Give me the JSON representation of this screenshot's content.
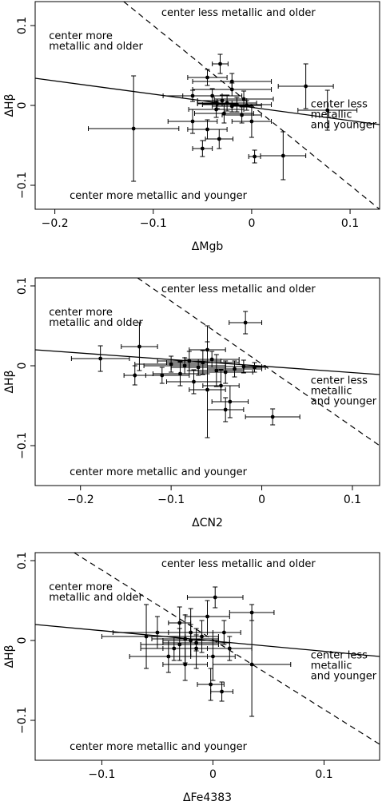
{
  "chart_data": [
    {
      "type": "scatter",
      "xlabel": "ΔMgb",
      "ylabel": "ΔHβ",
      "xlim": [
        -0.22,
        0.13
      ],
      "ylim": [
        -0.13,
        0.13
      ],
      "xticks": [
        -0.2,
        -0.1,
        0,
        0.1
      ],
      "xtick_labels": [
        "−0.2",
        "−0.1",
        "0",
        "0.1"
      ],
      "yticks": [
        -0.1,
        0,
        0.1
      ],
      "ytick_labels": [
        "−0.1",
        "0",
        "0.1"
      ],
      "annotations": {
        "top": "center less metallic and older",
        "left_line1": "center more",
        "left_line2": "metallic and older",
        "right_line1": "center less",
        "right_line2": "metallic",
        "right_line3": "and younger",
        "bottom": "center more metallic and younger"
      },
      "solid_line": [
        [
          -0.22,
          0.034
        ],
        [
          0.13,
          -0.024
        ]
      ],
      "dashed_line": [
        [
          -0.13,
          0.13
        ],
        [
          0.13,
          -0.13
        ]
      ],
      "points": [
        {
          "x": -0.12,
          "y": -0.029,
          "xerr": 0.046,
          "yerr": 0.066
        },
        {
          "x": -0.032,
          "y": 0.052,
          "xerr": 0.008,
          "yerr": 0.012
        },
        {
          "x": 0.055,
          "y": 0.024,
          "xerr": 0.028,
          "yerr": 0.028
        },
        {
          "x": 0.077,
          "y": -0.006,
          "xerr": 0.03,
          "yerr": 0.025
        },
        {
          "x": 0.032,
          "y": -0.063,
          "xerr": 0.023,
          "yerr": 0.03
        },
        {
          "x": 0.003,
          "y": -0.064,
          "xerr": 0.006,
          "yerr": 0.008
        },
        {
          "x": -0.05,
          "y": -0.054,
          "xerr": 0.01,
          "yerr": 0.01
        },
        {
          "x": -0.033,
          "y": -0.042,
          "xerr": 0.014,
          "yerr": 0.012
        },
        {
          "x": -0.045,
          "y": 0.035,
          "xerr": 0.02,
          "yerr": 0.01
        },
        {
          "x": -0.02,
          "y": 0.02,
          "xerr": 0.04,
          "yerr": 0.008
        },
        {
          "x": -0.04,
          "y": 0.012,
          "xerr": 0.03,
          "yerr": 0.009
        },
        {
          "x": -0.03,
          "y": 0.006,
          "xerr": 0.025,
          "yerr": 0.007
        },
        {
          "x": -0.025,
          "y": 0.003,
          "xerr": 0.03,
          "yerr": 0.01
        },
        {
          "x": -0.02,
          "y": -0.001,
          "xerr": 0.02,
          "yerr": 0.007
        },
        {
          "x": -0.015,
          "y": 0.001,
          "xerr": 0.035,
          "yerr": 0.009
        },
        {
          "x": -0.036,
          "y": -0.005,
          "xerr": 0.028,
          "yerr": 0.01
        },
        {
          "x": -0.028,
          "y": -0.01,
          "xerr": 0.03,
          "yerr": 0.012
        },
        {
          "x": -0.01,
          "y": -0.012,
          "xerr": 0.02,
          "yerr": 0.01
        },
        {
          "x": -0.06,
          "y": 0.012,
          "xerr": 0.03,
          "yerr": 0.007
        },
        {
          "x": -0.06,
          "y": -0.02,
          "xerr": 0.025,
          "yerr": 0.015
        },
        {
          "x": -0.008,
          "y": 0.008,
          "xerr": 0.03,
          "yerr": 0.01
        },
        {
          "x": 0.0,
          "y": -0.02,
          "xerr": 0.02,
          "yerr": 0.02
        },
        {
          "x": -0.045,
          "y": -0.03,
          "xerr": 0.02,
          "yerr": 0.012
        },
        {
          "x": -0.02,
          "y": 0.03,
          "xerr": 0.04,
          "yerr": 0.01
        },
        {
          "x": -0.005,
          "y": 0.0,
          "xerr": 0.015,
          "yerr": 0.006
        },
        {
          "x": -0.035,
          "y": 0.002,
          "xerr": 0.02,
          "yerr": 0.006
        }
      ]
    },
    {
      "type": "scatter",
      "xlabel": "ΔCN2",
      "ylabel": "ΔHβ",
      "xlim": [
        -0.25,
        0.13
      ],
      "ylim": [
        -0.15,
        0.11
      ],
      "xticks": [
        -0.2,
        -0.1,
        0,
        0.1
      ],
      "xtick_labels": [
        "−0.2",
        "−0.1",
        "0",
        "0.1"
      ],
      "yticks": [
        -0.1,
        0,
        0.1
      ],
      "ytick_labels": [
        "−0.1",
        "0",
        "0.1"
      ],
      "annotations": {
        "top": "center less metallic and older",
        "left_line1": "center more",
        "left_line2": "metallic and older",
        "right_line1": "center less",
        "right_line2": "metallic",
        "right_line3": "and younger",
        "bottom": "center more metallic and younger"
      },
      "solid_line": [
        [
          -0.25,
          0.02
        ],
        [
          0.13,
          -0.011
        ]
      ],
      "dashed_line": [
        [
          -0.137,
          0.11
        ],
        [
          0.13,
          -0.1
        ]
      ],
      "points": [
        {
          "x": -0.018,
          "y": 0.054,
          "xerr": 0.018,
          "yerr": 0.014
        },
        {
          "x": -0.178,
          "y": 0.009,
          "xerr": 0.032,
          "yerr": 0.016
        },
        {
          "x": -0.135,
          "y": 0.024,
          "xerr": 0.02,
          "yerr": 0.03
        },
        {
          "x": -0.14,
          "y": -0.012,
          "xerr": 0.012,
          "yerr": 0.012
        },
        {
          "x": -0.11,
          "y": -0.012,
          "xerr": 0.03,
          "yerr": 0.01
        },
        {
          "x": 0.012,
          "y": -0.064,
          "xerr": 0.03,
          "yerr": 0.01
        },
        {
          "x": -0.04,
          "y": -0.055,
          "xerr": 0.02,
          "yerr": 0.015
        },
        {
          "x": -0.06,
          "y": -0.03,
          "xerr": 0.02,
          "yerr": 0.06
        },
        {
          "x": -0.035,
          "y": -0.045,
          "xerr": 0.02,
          "yerr": 0.02
        },
        {
          "x": -0.06,
          "y": 0.02,
          "xerr": 0.02,
          "yerr": 0.03
        },
        {
          "x": -0.1,
          "y": 0.002,
          "xerr": 0.04,
          "yerr": 0.01
        },
        {
          "x": -0.08,
          "y": 0.006,
          "xerr": 0.035,
          "yerr": 0.012
        },
        {
          "x": -0.07,
          "y": -0.002,
          "xerr": 0.03,
          "yerr": 0.01
        },
        {
          "x": -0.065,
          "y": 0.004,
          "xerr": 0.04,
          "yerr": 0.015
        },
        {
          "x": -0.05,
          "y": -0.006,
          "xerr": 0.03,
          "yerr": 0.02
        },
        {
          "x": -0.04,
          "y": -0.008,
          "xerr": 0.03,
          "yerr": 0.014
        },
        {
          "x": -0.09,
          "y": -0.01,
          "xerr": 0.03,
          "yerr": 0.015
        },
        {
          "x": -0.03,
          "y": -0.004,
          "xerr": 0.03,
          "yerr": 0.01
        },
        {
          "x": -0.02,
          "y": -0.001,
          "xerr": 0.02,
          "yerr": 0.008
        },
        {
          "x": -0.055,
          "y": 0.008,
          "xerr": 0.03,
          "yerr": 0.01
        },
        {
          "x": -0.075,
          "y": -0.02,
          "xerr": 0.03,
          "yerr": 0.015
        },
        {
          "x": -0.045,
          "y": -0.025,
          "xerr": 0.02,
          "yerr": 0.02
        },
        {
          "x": -0.008,
          "y": -0.002,
          "xerr": 0.012,
          "yerr": 0.006
        },
        {
          "x": -0.085,
          "y": 0.0,
          "xerr": 0.045,
          "yerr": 0.01
        }
      ]
    },
    {
      "type": "scatter",
      "xlabel": "ΔFe4383",
      "ylabel": "ΔHβ",
      "xlim": [
        -0.16,
        0.15
      ],
      "ylim": [
        -0.15,
        0.11
      ],
      "xticks": [
        -0.1,
        0,
        0.1
      ],
      "xtick_labels": [
        "−0.1",
        "0",
        "0.1"
      ],
      "yticks": [
        -0.1,
        0,
        0.1
      ],
      "ytick_labels": [
        "−0.1",
        "0",
        "0.1"
      ],
      "annotations": {
        "top": "center less metallic and older",
        "left_line1": "center more",
        "left_line2": "metallic and older",
        "right_line1": "center less",
        "right_line2": "metallic",
        "right_line3": "and younger",
        "bottom": "center more metallic and younger"
      },
      "solid_line": [
        [
          -0.16,
          0.02
        ],
        [
          0.15,
          -0.02
        ]
      ],
      "dashed_line": [
        [
          -0.125,
          0.11
        ],
        [
          0.15,
          -0.13
        ]
      ],
      "points": [
        {
          "x": 0.035,
          "y": -0.03,
          "xerr": 0.035,
          "yerr": 0.065
        },
        {
          "x": 0.035,
          "y": 0.035,
          "xerr": 0.02,
          "yerr": 0.01
        },
        {
          "x": 0.002,
          "y": 0.054,
          "xerr": 0.025,
          "yerr": 0.013
        },
        {
          "x": -0.002,
          "y": -0.055,
          "xerr": 0.012,
          "yerr": 0.02
        },
        {
          "x": 0.008,
          "y": -0.064,
          "xerr": 0.01,
          "yerr": 0.012
        },
        {
          "x": -0.03,
          "y": 0.022,
          "xerr": 0.01,
          "yerr": 0.02
        },
        {
          "x": -0.06,
          "y": 0.005,
          "xerr": 0.04,
          "yerr": 0.04
        },
        {
          "x": -0.025,
          "y": 0.002,
          "xerr": 0.03,
          "yerr": 0.03
        },
        {
          "x": -0.02,
          "y": 0.0,
          "xerr": 0.025,
          "yerr": 0.02
        },
        {
          "x": -0.03,
          "y": -0.005,
          "xerr": 0.035,
          "yerr": 0.02
        },
        {
          "x": -0.015,
          "y": -0.01,
          "xerr": 0.03,
          "yerr": 0.025
        },
        {
          "x": -0.04,
          "y": -0.02,
          "xerr": 0.035,
          "yerr": 0.02
        },
        {
          "x": -0.02,
          "y": 0.01,
          "xerr": 0.02,
          "yerr": 0.03
        },
        {
          "x": -0.01,
          "y": 0.005,
          "xerr": 0.015,
          "yerr": 0.02
        },
        {
          "x": 0.0,
          "y": -0.02,
          "xerr": 0.02,
          "yerr": 0.03
        },
        {
          "x": -0.05,
          "y": 0.01,
          "xerr": 0.04,
          "yerr": 0.02
        },
        {
          "x": 0.015,
          "y": -0.01,
          "xerr": 0.02,
          "yerr": 0.015
        },
        {
          "x": -0.005,
          "y": 0.03,
          "xerr": 0.02,
          "yerr": 0.02
        },
        {
          "x": -0.035,
          "y": -0.01,
          "xerr": 0.03,
          "yerr": 0.015
        },
        {
          "x": -0.015,
          "y": -0.003,
          "xerr": 0.03,
          "yerr": 0.01
        },
        {
          "x": 0.01,
          "y": 0.01,
          "xerr": 0.015,
          "yerr": 0.015
        },
        {
          "x": -0.025,
          "y": -0.03,
          "xerr": 0.02,
          "yerr": 0.02
        }
      ]
    }
  ]
}
